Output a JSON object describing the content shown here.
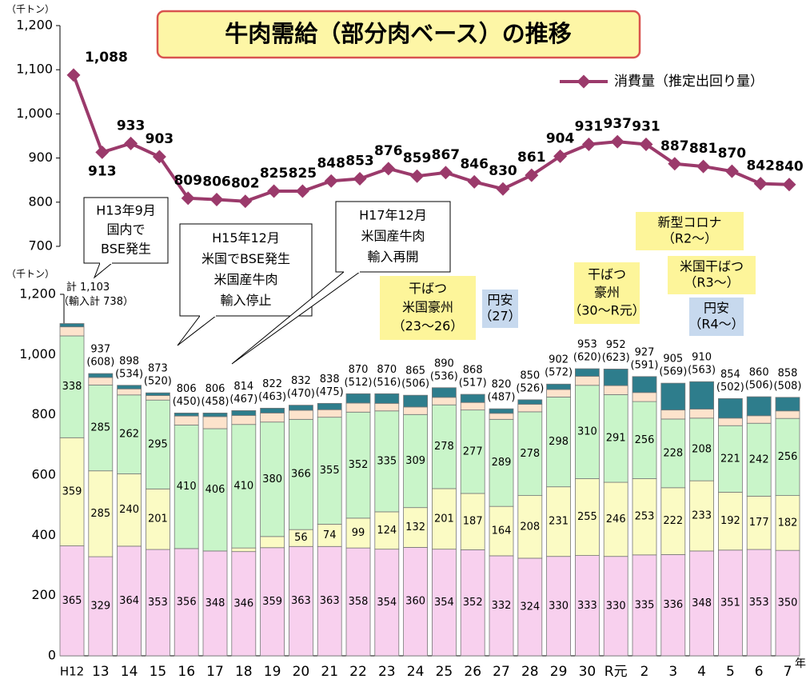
{
  "chart_data": [
    {
      "type": "line",
      "title": "牛肉需給（部分肉ベース）の推移",
      "unit_label": "（千トン）",
      "series": [
        {
          "name": "消費量（推定出回り量）",
          "color": "#9b3a6b",
          "values": [
            1088,
            913,
            933,
            903,
            809,
            806,
            802,
            825,
            825,
            848,
            853,
            876,
            859,
            867,
            846,
            830,
            861,
            904,
            931,
            937,
            931,
            887,
            881,
            870,
            842,
            840
          ],
          "value_labels": [
            "1,088",
            "913",
            "933",
            "903",
            "809",
            "806",
            "802",
            "825",
            "825",
            "848",
            "853",
            "876",
            "859",
            "867",
            "846",
            "830",
            "861",
            "904",
            "931",
            "937",
            "931",
            "887",
            "881",
            "870",
            "842",
            "840"
          ]
        }
      ],
      "ylim": [
        700,
        1200
      ],
      "yticks": [
        700,
        800,
        900,
        {
          "value": 1000,
          "label": "1,000"
        },
        {
          "value": 1100,
          "label": "1,100"
        },
        {
          "value": 1200,
          "label": "1,200"
        }
      ],
      "legend": "top-right"
    },
    {
      "type": "stacked_bar",
      "unit_label": "（千トン）",
      "x_unit": "年",
      "categories": [
        "H12",
        "13",
        "14",
        "15",
        "16",
        "17",
        "18",
        "19",
        "20",
        "21",
        "22",
        "23",
        "24",
        "25",
        "26",
        "27",
        "28",
        "29",
        "30",
        "R元",
        "2",
        "3",
        "4",
        "5",
        "6",
        "7"
      ],
      "series": [
        {
          "color": "#f8d0ee",
          "values": [
            365,
            329,
            364,
            353,
            356,
            348,
            346,
            359,
            363,
            363,
            358,
            354,
            360,
            354,
            352,
            332,
            324,
            330,
            333,
            330,
            335,
            336,
            348,
            351,
            353,
            350
          ]
        },
        {
          "color": "#fbfbc4",
          "values": [
            359,
            285,
            240,
            201,
            null,
            null,
            12,
            37,
            56,
            74,
            99,
            124,
            132,
            201,
            187,
            164,
            208,
            231,
            255,
            246,
            253,
            222,
            233,
            192,
            177,
            182
          ]
        },
        {
          "color": "#c9f5c9",
          "values": [
            338,
            285,
            262,
            295,
            410,
            406,
            410,
            380,
            366,
            355,
            352,
            335,
            309,
            278,
            277,
            289,
            278,
            298,
            310,
            291,
            256,
            228,
            208,
            221,
            242,
            256
          ]
        },
        {
          "color": "#fde3cc",
          "values": [
            30,
            25,
            20,
            15,
            30,
            40,
            30,
            30,
            30,
            25,
            30,
            25,
            25,
            25,
            25,
            20,
            25,
            25,
            30,
            30,
            30,
            30,
            30,
            25,
            25,
            25
          ]
        },
        {
          "color": "#2e7d8c",
          "values": [
            11,
            13,
            12,
            9,
            10,
            12,
            16,
            16,
            17,
            21,
            31,
            32,
            39,
            32,
            27,
            15,
            15,
            18,
            25,
            55,
            53,
            89,
            91,
            65,
            63,
            45
          ]
        }
      ],
      "totals": {
        "values": [
          1103,
          937,
          898,
          873,
          806,
          806,
          814,
          822,
          832,
          838,
          870,
          870,
          865,
          890,
          868,
          820,
          850,
          902,
          953,
          952,
          927,
          905,
          910,
          854,
          860,
          858
        ],
        "value_labels": [
          "計 1,103",
          "937",
          "898",
          "873",
          "806",
          "806",
          "814",
          "822",
          "832",
          "838",
          "870",
          "870",
          "865",
          "890",
          "868",
          "820",
          "850",
          "902",
          "953",
          "952",
          "927",
          "905",
          "910",
          "854",
          "860",
          "858"
        ]
      },
      "imports": {
        "values": [
          738,
          608,
          534,
          520,
          450,
          458,
          467,
          463,
          470,
          475,
          512,
          516,
          506,
          536,
          517,
          487,
          526,
          572,
          620,
          623,
          591,
          569,
          563,
          502,
          506,
          508
        ],
        "value_labels": [
          "（輸入計 738）",
          "(608)",
          "(534)",
          "(520)",
          "(450)",
          "(458)",
          "(467)",
          "(463)",
          "(470)",
          "(475)",
          "(512)",
          "(516)",
          "(506)",
          "(536)",
          "(517)",
          "(487)",
          "(526)",
          "(572)",
          "(620)",
          "(623)",
          "(591)",
          "(569)",
          "(563)",
          "(502)",
          "(506)",
          "(508)"
        ]
      },
      "ylim": [
        0,
        1200
      ],
      "yticks": [
        0,
        200,
        400,
        600,
        800,
        {
          "value": 1000,
          "label": "1,000"
        },
        {
          "value": 1200,
          "label": "1,200"
        }
      ],
      "annotations": [
        {
          "lines": [
            "H13年9月",
            "国内で",
            "BSE発生"
          ]
        },
        {
          "lines": [
            "H15年12月",
            "米国でBSE発生",
            "米国産牛肉",
            "輸入停止"
          ]
        },
        {
          "lines": [
            "H17年12月",
            "米国産牛肉",
            "輸入再開"
          ]
        },
        {
          "lines": [
            "干ばつ",
            "米国豪州",
            "（23〜26）"
          ]
        },
        {
          "lines": [
            "円安",
            "（27）"
          ]
        },
        {
          "lines": [
            "干ばつ",
            "豪州",
            "（30〜R元）"
          ]
        },
        {
          "lines": [
            "新型コロナ",
            "（R2〜）"
          ]
        },
        {
          "lines": [
            "米国干ばつ",
            "（R3〜）"
          ]
        },
        {
          "lines": [
            "円安",
            "（R4〜）"
          ]
        }
      ]
    }
  ]
}
